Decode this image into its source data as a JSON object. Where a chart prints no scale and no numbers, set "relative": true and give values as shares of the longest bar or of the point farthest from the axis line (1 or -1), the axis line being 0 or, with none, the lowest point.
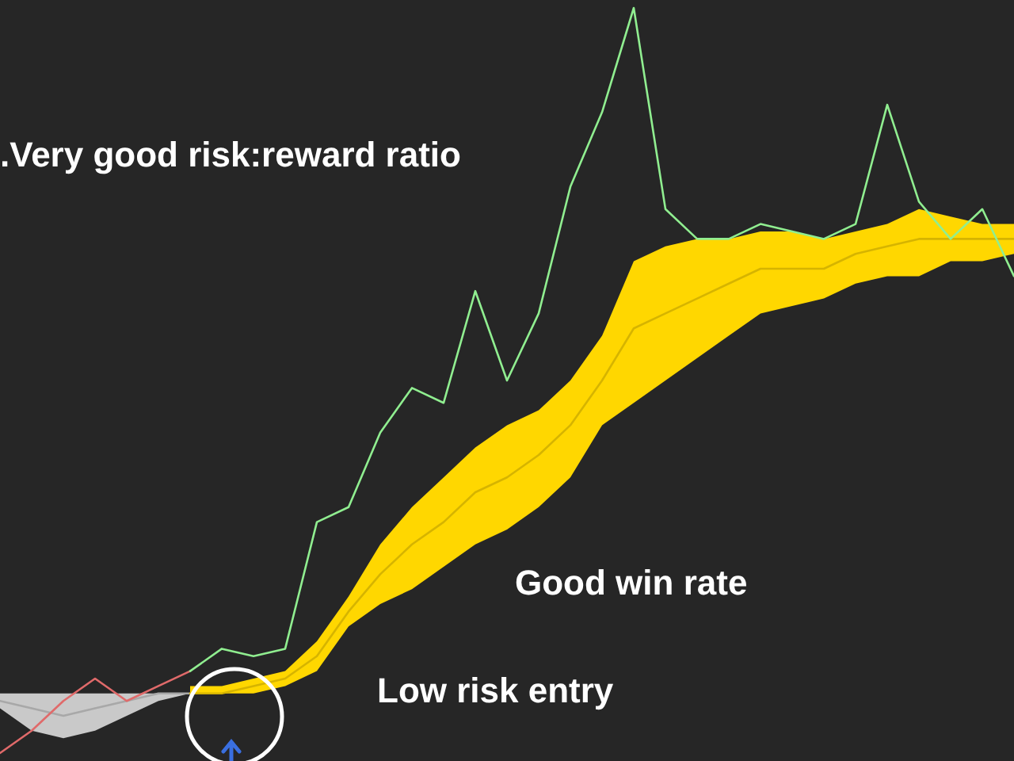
{
  "chart_data": {
    "type": "line",
    "relative": true,
    "categories": [
      null,
      null,
      null,
      null,
      null,
      null,
      null,
      null,
      null,
      null,
      null,
      null,
      null,
      null,
      null,
      null,
      null,
      null,
      null,
      null,
      null,
      null,
      null,
      null,
      null,
      null,
      null,
      null,
      null,
      null,
      null,
      null,
      null
    ],
    "series": [
      {
        "color": "#a8a8a8",
        "values": [
          0.07,
          0.06,
          0.05,
          0.06,
          0.07,
          0.08,
          0.08,
          null,
          null,
          null,
          null,
          null,
          null,
          null,
          null,
          null,
          null,
          null,
          null,
          null,
          null,
          null,
          null,
          null,
          null,
          null,
          null,
          null,
          null,
          null,
          null,
          null,
          null
        ],
        "lower": [
          0.06,
          0.03,
          0.02,
          0.03,
          0.05,
          0.07,
          0.08,
          null,
          null,
          null,
          null,
          null,
          null,
          null,
          null,
          null,
          null,
          null,
          null,
          null,
          null,
          null,
          null,
          null,
          null,
          null,
          null,
          null,
          null,
          null,
          null,
          null,
          null
        ],
        "upper": [
          0.08,
          0.08,
          0.08,
          0.08,
          0.08,
          0.08,
          0.08,
          null,
          null,
          null,
          null,
          null,
          null,
          null,
          null,
          null,
          null,
          null,
          null,
          null,
          null,
          null,
          null,
          null,
          null,
          null,
          null,
          null,
          null,
          null,
          null,
          null,
          null
        ]
      },
      {
        "color": "#d6b400",
        "values": [
          null,
          null,
          null,
          null,
          null,
          null,
          0.08,
          0.08,
          0.09,
          0.1,
          0.13,
          0.19,
          0.24,
          0.28,
          0.31,
          0.35,
          0.37,
          0.4,
          0.44,
          0.5,
          0.57,
          0.59,
          0.61,
          0.63,
          0.65,
          0.65,
          0.65,
          0.67,
          0.68,
          0.69,
          0.69,
          0.69,
          0.69
        ],
        "lower": [
          null,
          null,
          null,
          null,
          null,
          null,
          0.08,
          0.08,
          0.08,
          0.09,
          0.11,
          0.17,
          0.2,
          0.22,
          0.25,
          0.28,
          0.3,
          0.33,
          0.37,
          0.44,
          0.47,
          0.5,
          0.53,
          0.56,
          0.59,
          0.6,
          0.61,
          0.63,
          0.64,
          0.64,
          0.66,
          0.66,
          0.67
        ],
        "upper": [
          null,
          null,
          null,
          null,
          null,
          null,
          0.09,
          0.09,
          0.1,
          0.11,
          0.15,
          0.21,
          0.28,
          0.33,
          0.37,
          0.41,
          0.44,
          0.46,
          0.5,
          0.56,
          0.66,
          0.68,
          0.69,
          0.69,
          0.7,
          0.7,
          0.69,
          0.7,
          0.71,
          0.73,
          0.72,
          0.71,
          0.71
        ]
      },
      {
        "color": "#e06a6a",
        "values": [
          0,
          0.03,
          0.07,
          0.1,
          0.07,
          0.09,
          0.11,
          null,
          null,
          null,
          null,
          null,
          null,
          null,
          null,
          null,
          null,
          null,
          null,
          null,
          null,
          null,
          null,
          null,
          null,
          null,
          null,
          null,
          null,
          null,
          null,
          null,
          null
        ]
      },
      {
        "color": "#90ee90",
        "values": [
          null,
          null,
          null,
          null,
          null,
          null,
          0.11,
          0.14,
          0.13,
          0.14,
          0.31,
          0.33,
          0.43,
          0.49,
          0.47,
          0.62,
          0.5,
          0.59,
          0.76,
          0.86,
          1,
          0.73,
          0.69,
          0.69,
          0.71,
          0.7,
          0.69,
          0.71,
          0.87,
          0.74,
          0.69,
          0.73,
          0.64
        ]
      }
    ],
    "annotations": [
      ".Very good risk:reward ratio",
      "Good win rate",
      "Low risk entry"
    ]
  }
}
